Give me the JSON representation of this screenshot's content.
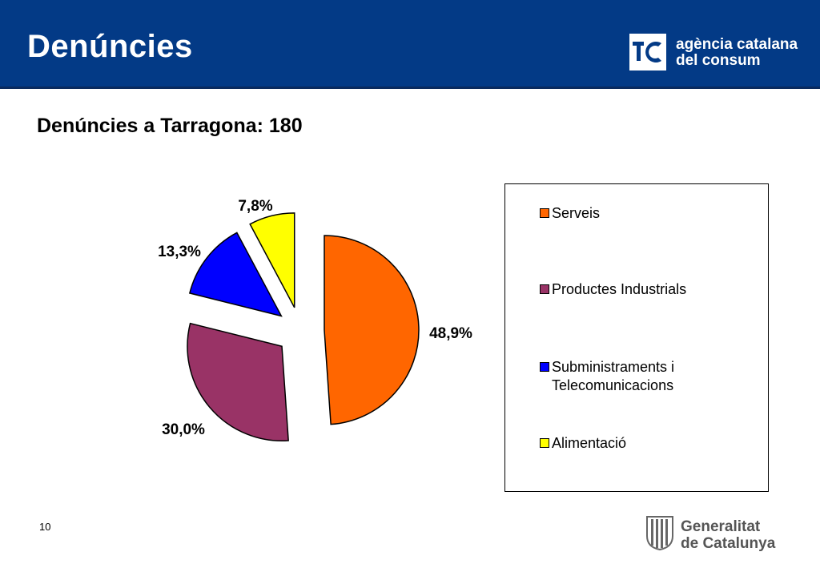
{
  "header": {
    "title": "Denúncies",
    "logo_text_line1": "agència catalana",
    "logo_text_line2": "del consum",
    "logo_mark": "tc-logo-mark"
  },
  "subtitle": "Denúncies a Tarragona: 180",
  "chart_data": {
    "type": "pie",
    "title": "Denúncies a Tarragona: 180",
    "categories": [
      "Serveis",
      "Productes Industrials",
      "Subministraments i Telecomunicacions",
      "Alimentació"
    ],
    "values": [
      48.9,
      30.0,
      13.3,
      7.8
    ],
    "labels": [
      "48,9%",
      "30,0%",
      "13,3%",
      "7,8%"
    ],
    "colors": [
      "#ff6600",
      "#993366",
      "#0000ff",
      "#ffff00"
    ],
    "exploded": true,
    "legend_placement": "right"
  },
  "legend": {
    "items": [
      {
        "label": "Serveis",
        "color": "#ff6600"
      },
      {
        "label": "Productes Industrials",
        "color": "#993366"
      },
      {
        "label_line1": "Subministraments i",
        "label_line2": "Telecomunicacions",
        "color": "#0000ff"
      },
      {
        "label": "Alimentació",
        "color": "#ffff00"
      }
    ]
  },
  "page_number": "10",
  "footer": {
    "logo_line1": "Generalitat",
    "logo_line2": "de Catalunya",
    "logo_mark": "generalitat-emblem"
  }
}
